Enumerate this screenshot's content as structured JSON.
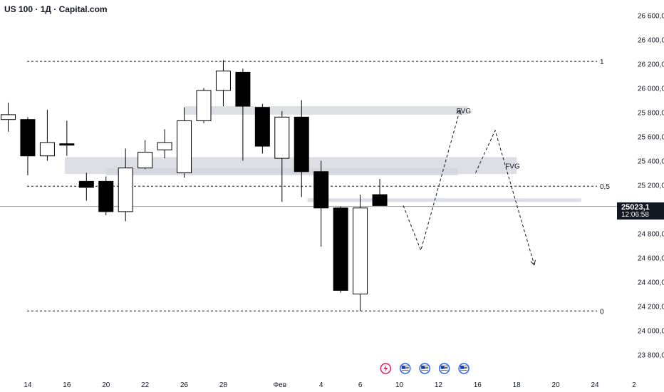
{
  "header": {
    "title": "US 100 · 1Д · Capital.com"
  },
  "price_badge": {
    "price": "25023,1",
    "timer": "12:06:58"
  },
  "chart_data": {
    "type": "candlestick",
    "ylim": [
      23700,
      26750
    ],
    "y_ticks": [
      {
        "value": 23800,
        "label": "23 800,0"
      },
      {
        "value": 24000,
        "label": "24 000,0"
      },
      {
        "value": 24200,
        "label": "24 200,0"
      },
      {
        "value": 24400,
        "label": "24 400,0"
      },
      {
        "value": 24600,
        "label": "24 600,0"
      },
      {
        "value": 24800,
        "label": "24 800,0"
      },
      {
        "value": 25000,
        "label": "25 000,0"
      },
      {
        "value": 25200,
        "label": "25 200,0"
      },
      {
        "value": 25400,
        "label": "25 400,0"
      },
      {
        "value": 25600,
        "label": "25 600,0"
      },
      {
        "value": 25800,
        "label": "25 800,0"
      },
      {
        "value": 26000,
        "label": "26 000,0"
      },
      {
        "value": 26200,
        "label": "26 200,0"
      },
      {
        "value": 26400,
        "label": "26 400,0"
      },
      {
        "value": 26600,
        "label": "26 600,0"
      }
    ],
    "x_ticks": [
      {
        "i": 1,
        "label": "14"
      },
      {
        "i": 3,
        "label": "16"
      },
      {
        "i": 5,
        "label": "20"
      },
      {
        "i": 7,
        "label": "22"
      },
      {
        "i": 9,
        "label": "26"
      },
      {
        "i": 11,
        "label": "28"
      },
      {
        "i": 14,
        "label": "Фев"
      },
      {
        "i": 16,
        "label": "4"
      },
      {
        "i": 18,
        "label": "6"
      },
      {
        "i": 20,
        "label": "10"
      },
      {
        "i": 22,
        "label": "12"
      },
      {
        "i": 24,
        "label": "16"
      },
      {
        "i": 26,
        "label": "18"
      },
      {
        "i": 28,
        "label": "20"
      },
      {
        "i": 30,
        "label": "24"
      },
      {
        "i": 32,
        "label": "2"
      }
    ],
    "candles": [
      {
        "i": 0,
        "o": 25740,
        "h": 25880,
        "l": 25640,
        "c": 25780
      },
      {
        "i": 1,
        "o": 25740,
        "h": 25760,
        "l": 25280,
        "c": 25440
      },
      {
        "i": 2,
        "o": 25440,
        "h": 25820,
        "l": 25400,
        "c": 25550
      },
      {
        "i": 3,
        "o": 25540,
        "h": 25730,
        "l": 25440,
        "c": 25530
      },
      {
        "i": 4,
        "o": 25230,
        "h": 25300,
        "l": 25070,
        "c": 25180
      },
      {
        "i": 5,
        "o": 25230,
        "h": 25270,
        "l": 24950,
        "c": 24980
      },
      {
        "i": 6,
        "o": 24980,
        "h": 25500,
        "l": 24900,
        "c": 25340
      },
      {
        "i": 7,
        "o": 25340,
        "h": 25570,
        "l": 25330,
        "c": 25470
      },
      {
        "i": 8,
        "o": 25490,
        "h": 25660,
        "l": 25420,
        "c": 25550
      },
      {
        "i": 9,
        "o": 25300,
        "h": 25840,
        "l": 25260,
        "c": 25730
      },
      {
        "i": 10,
        "o": 25730,
        "h": 26000,
        "l": 25710,
        "c": 25980
      },
      {
        "i": 11,
        "o": 25980,
        "h": 26230,
        "l": 25850,
        "c": 26140
      },
      {
        "i": 12,
        "o": 26130,
        "h": 26160,
        "l": 25400,
        "c": 25850
      },
      {
        "i": 13,
        "o": 25840,
        "h": 25870,
        "l": 25460,
        "c": 25520
      },
      {
        "i": 14,
        "o": 25420,
        "h": 25810,
        "l": 25060,
        "c": 25760
      },
      {
        "i": 15,
        "o": 25760,
        "h": 25900,
        "l": 25100,
        "c": 25310
      },
      {
        "i": 16,
        "o": 25310,
        "h": 25400,
        "l": 24690,
        "c": 25010
      },
      {
        "i": 17,
        "o": 25010,
        "h": 25020,
        "l": 24310,
        "c": 24330
      },
      {
        "i": 18,
        "o": 24300,
        "h": 25120,
        "l": 24160,
        "c": 25010
      },
      {
        "i": 19,
        "o": 25120,
        "h": 25250,
        "l": 25030,
        "c": 25030
      }
    ],
    "levels": [
      {
        "value": 26220,
        "label": "1"
      },
      {
        "value": 25190,
        "label": "0,5"
      },
      {
        "value": 24160,
        "label": "0"
      }
    ],
    "current_price": 25023.1,
    "fvg_zones": [
      {
        "label": "FVG",
        "i_start": 9,
        "i_end": 23.5,
        "top": 25850,
        "bottom": 25780
      },
      {
        "label": "FVG",
        "i_start": 2.9,
        "i_end": 26,
        "top": 25430,
        "bottom": 25290
      }
    ],
    "gray_zones": [
      {
        "i_start": 5,
        "i_end": 23,
        "top": 25340,
        "bottom": 25280
      },
      {
        "i_start": 15.3,
        "i_end": 29.3,
        "top": 25090,
        "bottom": 25060
      }
    ],
    "projection_paths": [
      [
        {
          "i": 20.2,
          "v": 25030
        },
        {
          "i": 21.1,
          "v": 24660
        },
        {
          "i": 23.1,
          "v": 25820
        }
      ],
      [
        {
          "i": 23.9,
          "v": 25300
        },
        {
          "i": 24.9,
          "v": 25650
        },
        {
          "i": 26.9,
          "v": 24540
        }
      ]
    ],
    "event_icons": [
      {
        "i": 19.3,
        "type": "lightning"
      },
      {
        "i": 20.3,
        "type": "us-flag"
      },
      {
        "i": 21.3,
        "type": "us-flag"
      },
      {
        "i": 22.3,
        "type": "us-flag"
      },
      {
        "i": 23.3,
        "type": "us-flag"
      }
    ],
    "colors": {
      "up_body": "#ffffff",
      "down_body": "#000000",
      "candle_border": "#000000",
      "zone": "#d1d4dc",
      "level_line": "#131722",
      "grid_text": "#131722",
      "event_lightning": "#e91e63",
      "event_flag": "#2962ff"
    }
  }
}
